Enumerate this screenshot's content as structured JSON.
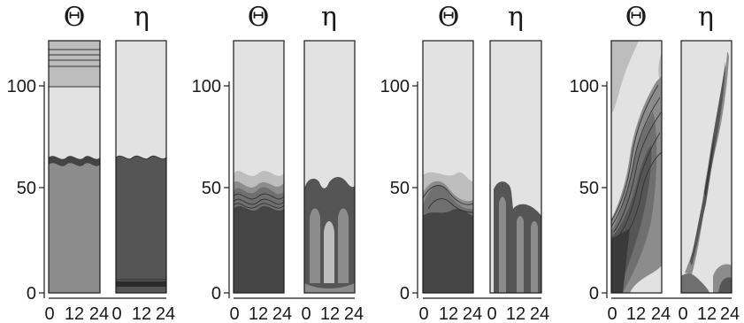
{
  "panels": [
    {
      "theta": "Θ",
      "eta": "η"
    },
    {
      "theta": "Θ",
      "eta": "η"
    },
    {
      "theta": "Θ",
      "eta": "η"
    },
    {
      "theta": "Θ",
      "eta": "η"
    }
  ],
  "y_ticks": [
    "0",
    "50",
    "100"
  ],
  "x_ticks": [
    "0",
    "12",
    "24"
  ],
  "colors": {
    "light": "#e2e2e2",
    "mid_light": "#bdbdbd",
    "mid": "#8c8c8c",
    "mid_dark": "#6f6f6f",
    "dark": "#555555",
    "darkest": "#3a3a3a"
  }
}
